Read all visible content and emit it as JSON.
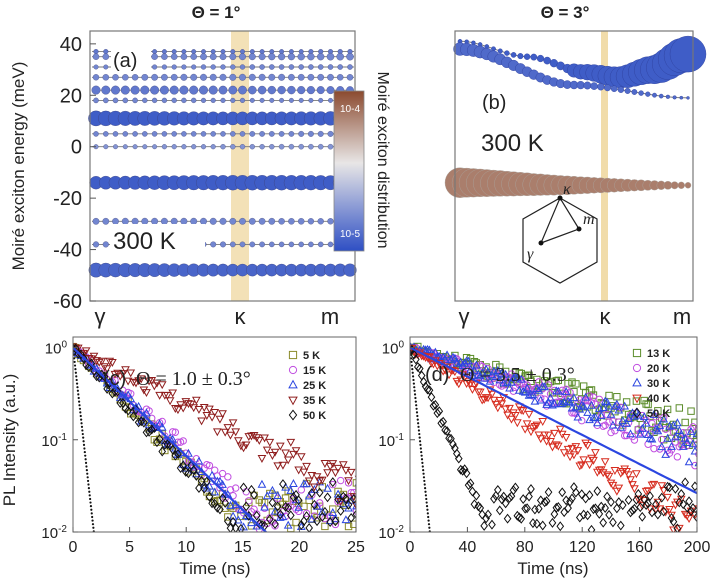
{
  "colors": {
    "cb_top": "#8b4a2f",
    "cb_mid": "#e8e6e6",
    "cb_bottom": "#2e4fc4",
    "highlight": "#f1dcaa",
    "green": "#5b8c2a",
    "purple": "#c04ee0",
    "blue": "#2b46e0",
    "red": "#d62b1e",
    "darkred": "#8f1d1d",
    "olive": "#8a8a2a",
    "black": "#111111"
  },
  "chart_data": [
    {
      "type": "scatter",
      "panel": "(a)",
      "title": "Θ = 1°",
      "ylabel": "Moiré exciton energy (meV)",
      "xticks": [
        "γ",
        "κ",
        "m"
      ],
      "ylim": [
        -60,
        45
      ],
      "yticks": [
        40,
        20,
        0,
        -20,
        -40,
        -60
      ],
      "temperature_label": "300 K",
      "highlight_at": "κ",
      "bands": [
        {
          "energy": 37,
          "size": 0.2,
          "dist": 0.15
        },
        {
          "energy": 35,
          "size": 0.35,
          "dist": 0.2
        },
        {
          "energy": 31,
          "size": 0.2,
          "dist": 0.2
        },
        {
          "energy": 27,
          "size": 0.3,
          "dist": 0.2
        },
        {
          "energy": 22,
          "size": 0.45,
          "dist": 0.15
        },
        {
          "energy": 18,
          "size": 0.2,
          "dist": 0.2
        },
        {
          "energy": 11,
          "size": 1.0,
          "dist": 0.05
        },
        {
          "energy": 5,
          "size": 0.25,
          "dist": 0.2
        },
        {
          "energy": 0,
          "size": 0.2,
          "dist": 0.25
        },
        {
          "energy": -14,
          "size": 0.9,
          "dist": 0.05
        },
        {
          "energy": -29,
          "size": 0.3,
          "dist": 0.2
        },
        {
          "energy": -38,
          "size": 0.25,
          "dist": 0.2
        },
        {
          "energy": -48,
          "size": 0.9,
          "dist": 0.08
        }
      ]
    },
    {
      "type": "scatter",
      "panel": "(b)",
      "title": "Θ = 3°",
      "xticks": [
        "γ",
        "κ",
        "m"
      ],
      "temperature_label": "300 K",
      "highlight_at": "κ",
      "bz_labels": [
        "κ",
        "m",
        "γ"
      ],
      "bands": [
        {
          "name": "upper",
          "points": [
            [
              0,
              41
            ],
            [
              0.3,
              35
            ],
            [
              0.55,
              29
            ],
            [
              0.7,
              27
            ],
            [
              0.85,
              30
            ],
            [
              1,
              36
            ]
          ],
          "size": 1.0,
          "dist": 0.05
        },
        {
          "name": "middle",
          "points": [
            [
              0,
              38
            ],
            [
              0.5,
              24
            ],
            [
              1,
              19
            ]
          ],
          "size": 0.4,
          "dist": 0.1
        },
        {
          "name": "lower",
          "points": [
            [
              0,
              -14
            ],
            [
              0.5,
              -15
            ],
            [
              1,
              -15
            ]
          ],
          "size": 1.0,
          "dist": 0.85
        }
      ]
    },
    {
      "type": "colorbar",
      "label": "Moiré exciton distribution",
      "tick_top": "10-4",
      "tick_bottom": "10-5",
      "range": [
        1e-05,
        0.0001
      ]
    },
    {
      "type": "scatter",
      "panel": "(c)",
      "annotation": "Θ = 1.0 ± 0.3°",
      "xlabel": "Time (ns)",
      "ylabel": "PL Intensity (a.u.)",
      "xlim": [
        0,
        25
      ],
      "xticks": [
        0,
        5,
        10,
        15,
        20,
        25
      ],
      "ylim": [
        0.01,
        1.3
      ],
      "yscale": "log",
      "yticks": [
        {
          "v": 1,
          "label": "10",
          "sup": "0"
        },
        {
          "v": 0.1,
          "label": "10",
          "sup": "-1"
        },
        {
          "v": 0.01,
          "label": "10",
          "sup": "-2"
        }
      ],
      "legend_position": "top-right",
      "series": [
        {
          "name": "5 K",
          "marker": "square",
          "color": "olive",
          "tau": 3.4
        },
        {
          "name": "15 K",
          "marker": "circle",
          "color": "purple",
          "tau": 3.9
        },
        {
          "name": "25 K",
          "marker": "triangle-up",
          "color": "blue",
          "tau": 3.6
        },
        {
          "name": "35 K",
          "marker": "triangle-down",
          "color": "darkred",
          "tau": 7.0
        },
        {
          "name": "50 K",
          "marker": "diamond",
          "color": "black",
          "tau": 3.3
        }
      ],
      "irf_tau": 0.4,
      "fit_tau": 3.7
    },
    {
      "type": "scatter",
      "panel": "(d)",
      "annotation": "Θ = 3.5 ± 0.3°",
      "xlabel": "Time (ns)",
      "xlim": [
        0,
        200
      ],
      "xticks": [
        0,
        40,
        80,
        120,
        160,
        200
      ],
      "ylim": [
        0.01,
        1.3
      ],
      "yscale": "log",
      "yticks": [
        {
          "v": 1,
          "label": "10",
          "sup": "0"
        },
        {
          "v": 0.1,
          "label": "10",
          "sup": "-1"
        },
        {
          "v": 0.01,
          "label": "10",
          "sup": "-2"
        }
      ],
      "legend_position": "top-right",
      "series": [
        {
          "name": "13 K",
          "marker": "square",
          "color": "green",
          "tau": 95
        },
        {
          "name": "20 K",
          "marker": "circle",
          "color": "purple",
          "tau": 80
        },
        {
          "name": "30 K",
          "marker": "triangle-up",
          "color": "blue",
          "tau": 80
        },
        {
          "name": "40 K",
          "marker": "triangle-down",
          "color": "red",
          "tau": 45
        },
        {
          "name": "50 K",
          "marker": "diamond",
          "color": "black",
          "tau": 12
        }
      ],
      "irf_tau": 3,
      "fit_tau": 55
    }
  ]
}
